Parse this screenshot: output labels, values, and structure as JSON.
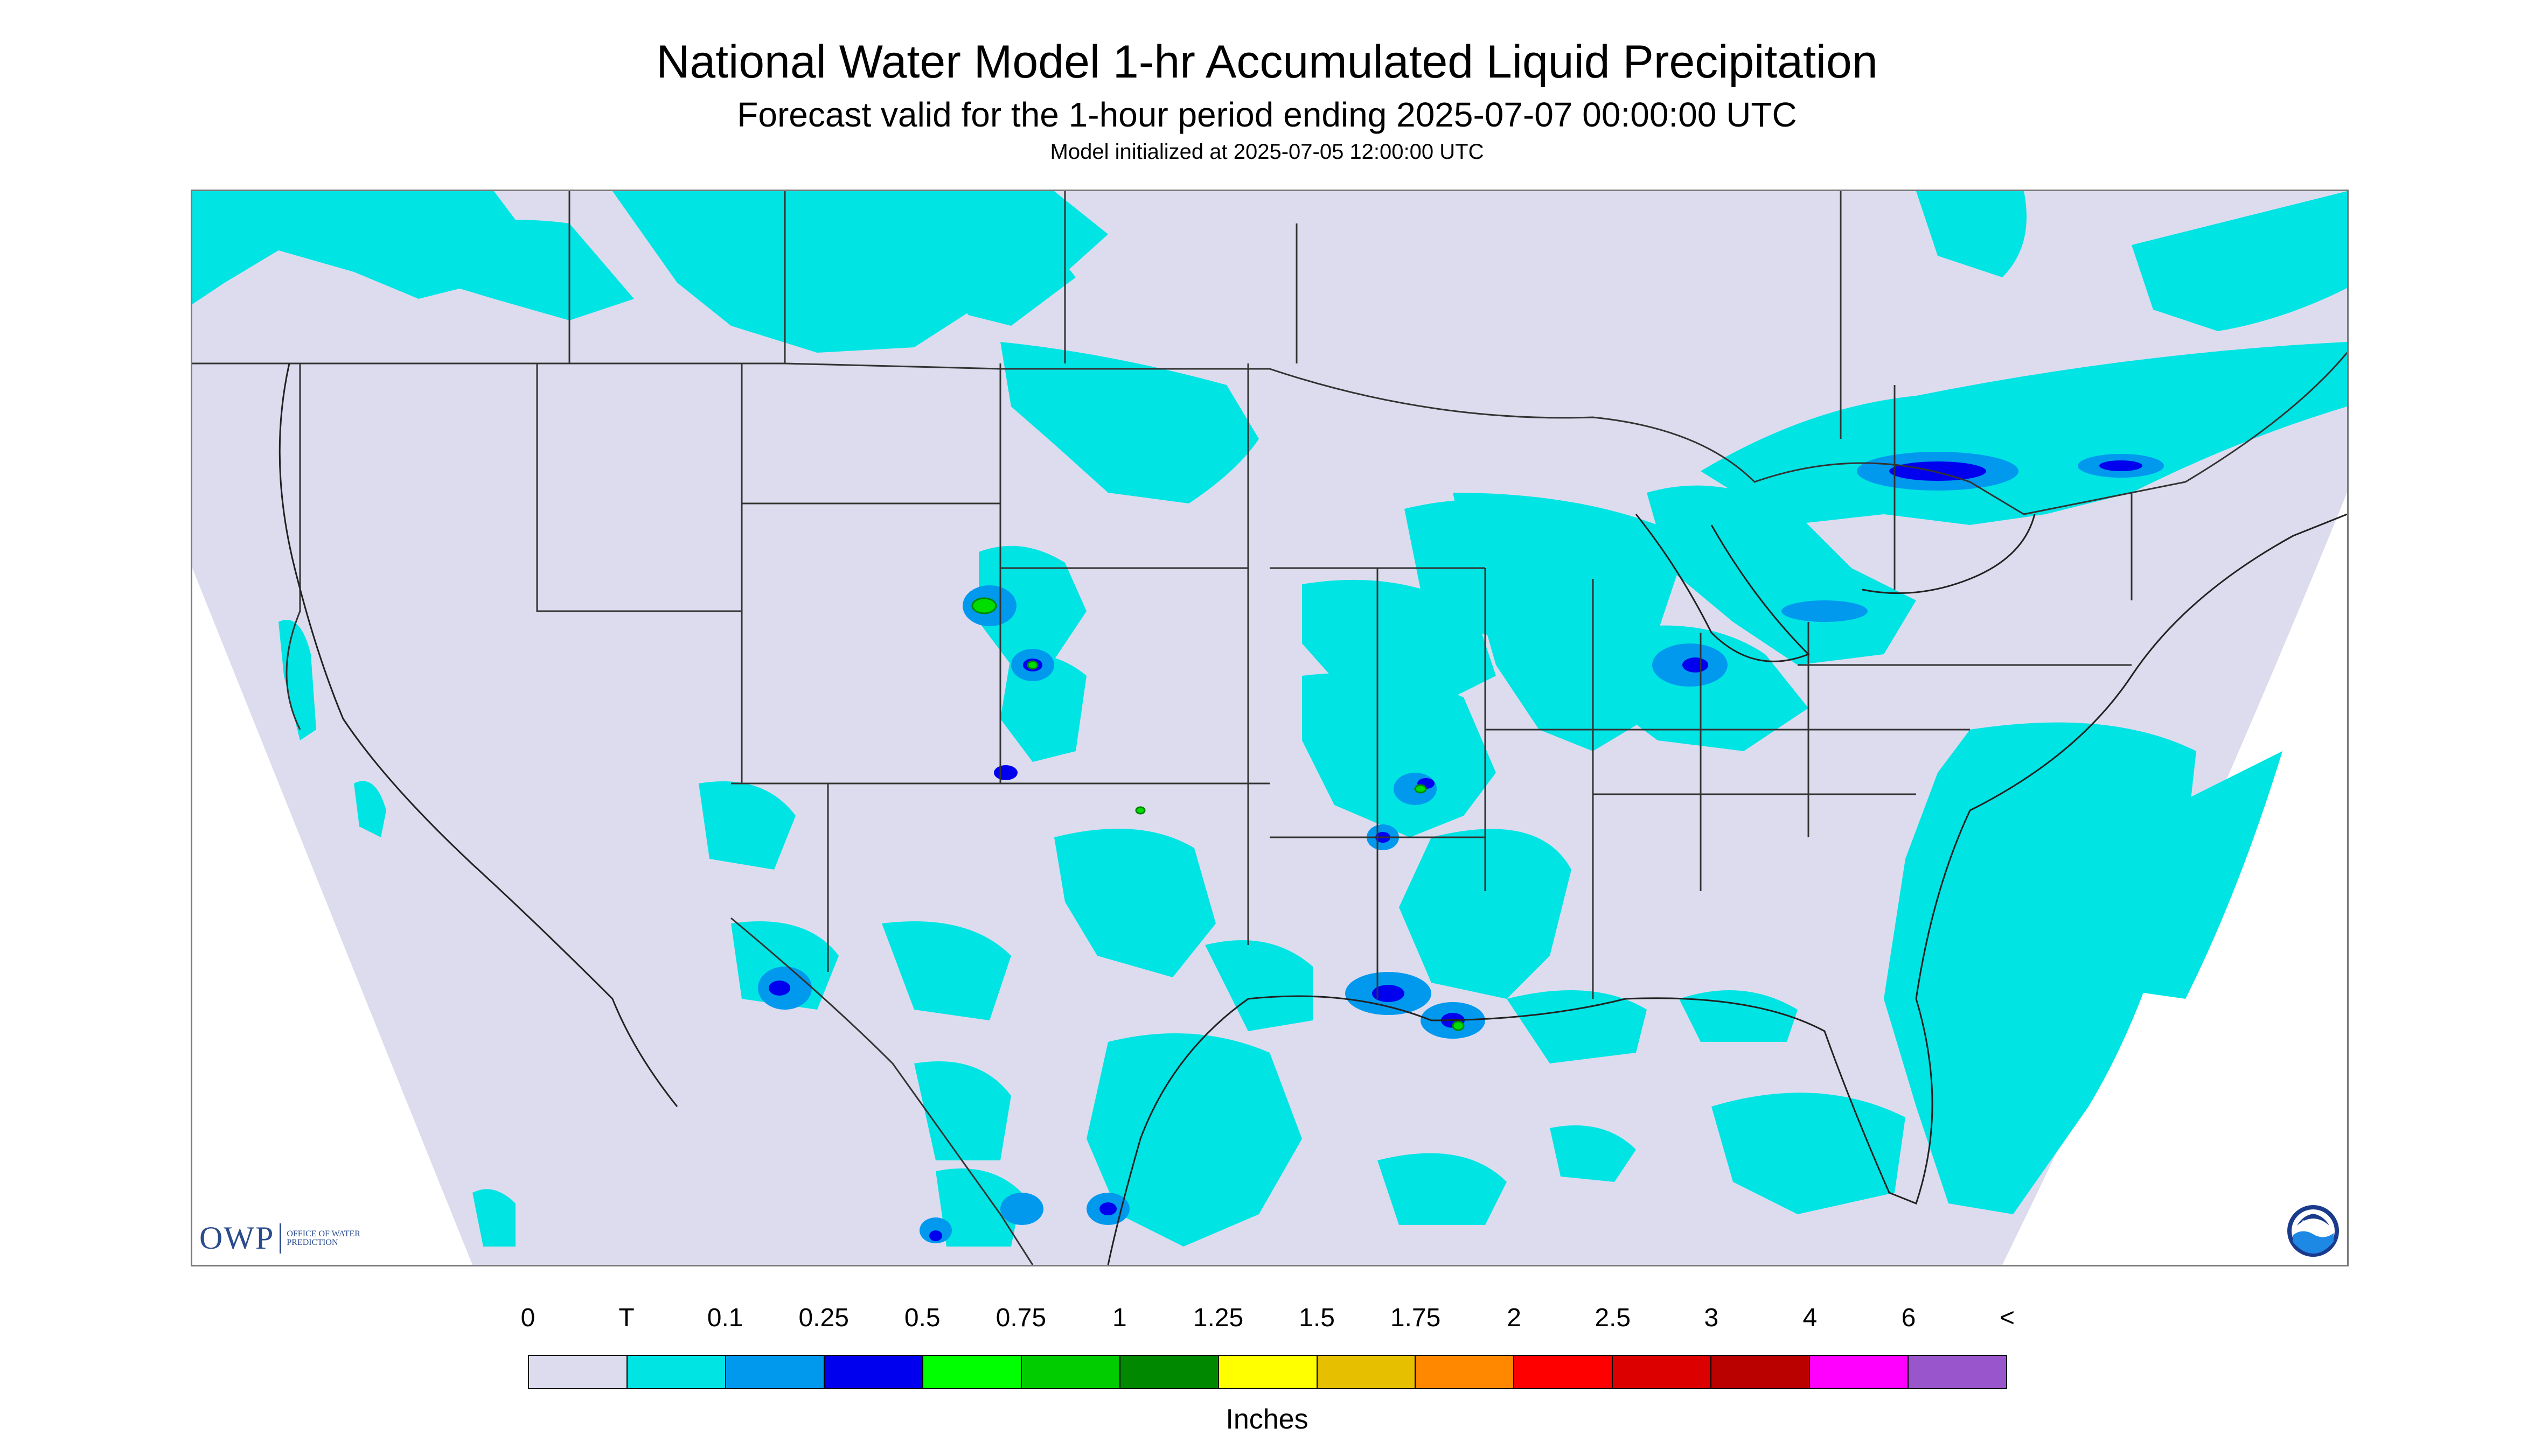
{
  "header": {
    "title": "National Water Model 1-hr Accumulated Liquid Precipitation",
    "subtitle": "Forecast valid for the 1-hour period ending 2025-07-07 00:00:00 UTC",
    "init_time": "Model initialized at 2025-07-05 12:00:00 UTC"
  },
  "logos": {
    "owp_text": "OWP",
    "owp_subtitle": "OFFICE OF WATER PREDICTION",
    "noaa_text": "NOAA"
  },
  "colors": {
    "background_no_precip": "#dcdcee",
    "trace": "#00e4e4",
    "light_blue": "#0099ee",
    "dark_blue": "#0000ee",
    "green": "#00dd00",
    "boundary_line": "#333333",
    "outside_domain": "#ffffff"
  },
  "legend": {
    "labels": [
      "0",
      "T",
      "0.1",
      "0.25",
      "0.5",
      "0.75",
      "1",
      "1.25",
      "1.5",
      "1.75",
      "2",
      "2.5",
      "3",
      "4",
      "6",
      "<"
    ],
    "colors": [
      "#dcdcee",
      "#00e4e4",
      "#0099ee",
      "#0000ee",
      "#00ff00",
      "#00cc00",
      "#008800",
      "#ffff00",
      "#e6c000",
      "#ff8800",
      "#ff0000",
      "#dd0000",
      "#bb0000",
      "#ff00ff",
      "#9955cc"
    ],
    "units": "Inches"
  }
}
